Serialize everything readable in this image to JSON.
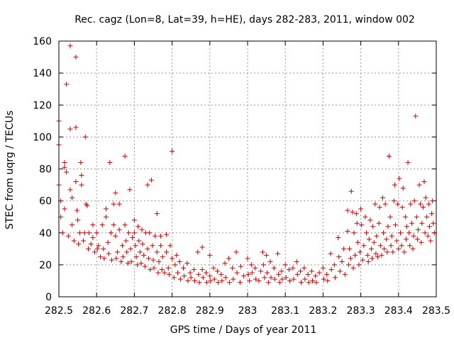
{
  "chart_data": {
    "type": "scatter",
    "title": "Rec. cagz (Lon=8, Lat=39, h=HE), days 282-283, 2011, window 002",
    "xlabel": "GPS time / Days of year 2011",
    "ylabel": "STEC from uqrg / TECUs",
    "xlim": [
      282.5,
      283.5
    ],
    "ylim": [
      0,
      160
    ],
    "xticks": [
      "282.5",
      "282.6",
      "282.7",
      "282.8",
      "282.9",
      "283",
      "283.1",
      "283.2",
      "283.3",
      "283.4",
      "283.5"
    ],
    "yticks": [
      "0",
      "20",
      "40",
      "60",
      "80",
      "100",
      "120",
      "140",
      "160"
    ],
    "grid": true,
    "marker": "plus",
    "colors": {
      "points": "#cc0000",
      "grid": "#999999",
      "frame": "#000000"
    },
    "points": [
      [
        282.5,
        110
      ],
      [
        282.5,
        95
      ],
      [
        282.5,
        70
      ],
      [
        282.505,
        60
      ],
      [
        282.505,
        50
      ],
      [
        282.51,
        40
      ],
      [
        282.515,
        55
      ],
      [
        282.515,
        84
      ],
      [
        282.515,
        81
      ],
      [
        282.52,
        78
      ],
      [
        282.52,
        133
      ],
      [
        282.525,
        38
      ],
      [
        282.53,
        157
      ],
      [
        282.53,
        105
      ],
      [
        282.53,
        67
      ],
      [
        282.535,
        62
      ],
      [
        282.535,
        45
      ],
      [
        282.54,
        35
      ],
      [
        282.545,
        150
      ],
      [
        282.545,
        106
      ],
      [
        282.545,
        72
      ],
      [
        282.548,
        54
      ],
      [
        282.55,
        48
      ],
      [
        282.552,
        33
      ],
      [
        282.555,
        40
      ],
      [
        282.558,
        84
      ],
      [
        282.56,
        76
      ],
      [
        282.56,
        70
      ],
      [
        282.565,
        35
      ],
      [
        282.568,
        40
      ],
      [
        282.57,
        100
      ],
      [
        282.572,
        58
      ],
      [
        282.575,
        57
      ],
      [
        282.578,
        30
      ],
      [
        282.58,
        40
      ],
      [
        282.585,
        33
      ],
      [
        282.59,
        37
      ],
      [
        282.59,
        45
      ],
      [
        282.595,
        28
      ],
      [
        282.6,
        40
      ],
      [
        282.602,
        30
      ],
      [
        282.605,
        32
      ],
      [
        282.61,
        25
      ],
      [
        282.615,
        45
      ],
      [
        282.618,
        30
      ],
      [
        282.62,
        24
      ],
      [
        282.625,
        55
      ],
      [
        282.625,
        50
      ],
      [
        282.63,
        34
      ],
      [
        282.632,
        27
      ],
      [
        282.635,
        84
      ],
      [
        282.638,
        40
      ],
      [
        282.64,
        23
      ],
      [
        282.645,
        58
      ],
      [
        282.645,
        45
      ],
      [
        282.65,
        65
      ],
      [
        282.65,
        38
      ],
      [
        282.652,
        24
      ],
      [
        282.655,
        28
      ],
      [
        282.66,
        58
      ],
      [
        282.66,
        42
      ],
      [
        282.665,
        22
      ],
      [
        282.668,
        32
      ],
      [
        282.67,
        25
      ],
      [
        282.675,
        88
      ],
      [
        282.675,
        45
      ],
      [
        282.678,
        35
      ],
      [
        282.68,
        28
      ],
      [
        282.683,
        21
      ],
      [
        282.685,
        40
      ],
      [
        282.688,
        67
      ],
      [
        282.69,
        30
      ],
      [
        282.692,
        22
      ],
      [
        282.695,
        37
      ],
      [
        282.7,
        48
      ],
      [
        282.7,
        40
      ],
      [
        282.703,
        32
      ],
      [
        282.705,
        25
      ],
      [
        282.708,
        20
      ],
      [
        282.71,
        44
      ],
      [
        282.712,
        35
      ],
      [
        282.715,
        28
      ],
      [
        282.718,
        21
      ],
      [
        282.72,
        42
      ],
      [
        282.722,
        33
      ],
      [
        282.725,
        26
      ],
      [
        282.728,
        19
      ],
      [
        282.73,
        40
      ],
      [
        282.735,
        70
      ],
      [
        282.735,
        30
      ],
      [
        282.738,
        24
      ],
      [
        282.74,
        40
      ],
      [
        282.742,
        17
      ],
      [
        282.745,
        73
      ],
      [
        282.748,
        32
      ],
      [
        282.75,
        23
      ],
      [
        282.752,
        18
      ],
      [
        282.755,
        38
      ],
      [
        282.76,
        52
      ],
      [
        282.76,
        28
      ],
      [
        282.763,
        15
      ],
      [
        282.765,
        22
      ],
      [
        282.77,
        38
      ],
      [
        282.77,
        32
      ],
      [
        282.773,
        17
      ],
      [
        282.775,
        25
      ],
      [
        282.78,
        15
      ],
      [
        282.785,
        39
      ],
      [
        282.785,
        28
      ],
      [
        282.79,
        18
      ],
      [
        282.792,
        14
      ],
      [
        282.795,
        32
      ],
      [
        282.8,
        91
      ],
      [
        282.8,
        24
      ],
      [
        282.805,
        12
      ],
      [
        282.808,
        20
      ],
      [
        282.812,
        26
      ],
      [
        282.815,
        15
      ],
      [
        282.82,
        22
      ],
      [
        282.822,
        11
      ],
      [
        282.83,
        18
      ],
      [
        282.832,
        13
      ],
      [
        282.84,
        21
      ],
      [
        282.842,
        10
      ],
      [
        282.848,
        15
      ],
      [
        282.85,
        12
      ],
      [
        282.858,
        17
      ],
      [
        282.86,
        10
      ],
      [
        282.868,
        28
      ],
      [
        282.87,
        14
      ],
      [
        282.872,
        9
      ],
      [
        282.88,
        31
      ],
      [
        282.88,
        17
      ],
      [
        282.882,
        12
      ],
      [
        282.89,
        15
      ],
      [
        282.892,
        9
      ],
      [
        282.9,
        26
      ],
      [
        282.9,
        13
      ],
      [
        282.902,
        10
      ],
      [
        282.91,
        18
      ],
      [
        282.912,
        11
      ],
      [
        282.92,
        16
      ],
      [
        282.922,
        9
      ],
      [
        282.93,
        14
      ],
      [
        282.932,
        10
      ],
      [
        282.94,
        21
      ],
      [
        282.942,
        12
      ],
      [
        282.95,
        24
      ],
      [
        282.952,
        9
      ],
      [
        282.96,
        18
      ],
      [
        282.962,
        11
      ],
      [
        282.97,
        28
      ],
      [
        282.972,
        15
      ],
      [
        282.98,
        9
      ],
      [
        282.982,
        19
      ],
      [
        282.99,
        13
      ],
      [
        283.0,
        24
      ],
      [
        283.002,
        14
      ],
      [
        283.005,
        10
      ],
      [
        283.01,
        20
      ],
      [
        283.012,
        15
      ],
      [
        283.02,
        18
      ],
      [
        283.022,
        11
      ],
      [
        283.03,
        10
      ],
      [
        283.035,
        16
      ],
      [
        283.04,
        28
      ],
      [
        283.042,
        20
      ],
      [
        283.045,
        12
      ],
      [
        283.05,
        26
      ],
      [
        283.052,
        15
      ],
      [
        283.055,
        9
      ],
      [
        283.06,
        22
      ],
      [
        283.062,
        12
      ],
      [
        283.07,
        18
      ],
      [
        283.072,
        11
      ],
      [
        283.08,
        27
      ],
      [
        283.082,
        14
      ],
      [
        283.085,
        9
      ],
      [
        283.09,
        16
      ],
      [
        283.092,
        11
      ],
      [
        283.1,
        20
      ],
      [
        283.102,
        12
      ],
      [
        283.11,
        17
      ],
      [
        283.112,
        10
      ],
      [
        283.12,
        18
      ],
      [
        283.122,
        11
      ],
      [
        283.13,
        22
      ],
      [
        283.132,
        14
      ],
      [
        283.14,
        16
      ],
      [
        283.142,
        9
      ],
      [
        283.15,
        18
      ],
      [
        283.152,
        11
      ],
      [
        283.16,
        14
      ],
      [
        283.162,
        9
      ],
      [
        283.17,
        16
      ],
      [
        283.172,
        10
      ],
      [
        283.18,
        13
      ],
      [
        283.182,
        9
      ],
      [
        283.19,
        15
      ],
      [
        283.2,
        18
      ],
      [
        283.202,
        11
      ],
      [
        283.21,
        14
      ],
      [
        283.212,
        10
      ],
      [
        283.22,
        27
      ],
      [
        283.222,
        17
      ],
      [
        283.23,
        20
      ],
      [
        283.232,
        12
      ],
      [
        283.24,
        37
      ],
      [
        283.242,
        25
      ],
      [
        283.245,
        16
      ],
      [
        283.25,
        22
      ],
      [
        283.255,
        30
      ],
      [
        283.258,
        14
      ],
      [
        283.265,
        54
      ],
      [
        283.265,
        41
      ],
      [
        283.268,
        20
      ],
      [
        283.27,
        30
      ],
      [
        283.273,
        24
      ],
      [
        283.275,
        66
      ],
      [
        283.278,
        53
      ],
      [
        283.28,
        18
      ],
      [
        283.282,
        40
      ],
      [
        283.285,
        26
      ],
      [
        283.288,
        52
      ],
      [
        283.29,
        46
      ],
      [
        283.292,
        34
      ],
      [
        283.295,
        20
      ],
      [
        283.298,
        28
      ],
      [
        283.3,
        55
      ],
      [
        283.302,
        45
      ],
      [
        283.305,
        23
      ],
      [
        283.308,
        32
      ],
      [
        283.312,
        50
      ],
      [
        283.315,
        40
      ],
      [
        283.318,
        26
      ],
      [
        283.32,
        22
      ],
      [
        283.322,
        36
      ],
      [
        283.325,
        48
      ],
      [
        283.328,
        30
      ],
      [
        283.33,
        24
      ],
      [
        283.332,
        44
      ],
      [
        283.335,
        34
      ],
      [
        283.338,
        58
      ],
      [
        283.34,
        27
      ],
      [
        283.342,
        38
      ],
      [
        283.345,
        25
      ],
      [
        283.348,
        46
      ],
      [
        283.35,
        56
      ],
      [
        283.352,
        32
      ],
      [
        283.355,
        26
      ],
      [
        283.358,
        62
      ],
      [
        283.36,
        40
      ],
      [
        283.362,
        30
      ],
      [
        283.365,
        58
      ],
      [
        283.368,
        36
      ],
      [
        283.37,
        28
      ],
      [
        283.372,
        44
      ],
      [
        283.375,
        88
      ],
      [
        283.378,
        50
      ],
      [
        283.38,
        32
      ],
      [
        283.382,
        38
      ],
      [
        283.385,
        28
      ],
      [
        283.388,
        60
      ],
      [
        283.39,
        70
      ],
      [
        283.392,
        45
      ],
      [
        283.395,
        35
      ],
      [
        283.398,
        58
      ],
      [
        283.4,
        30
      ],
      [
        283.402,
        74
      ],
      [
        283.405,
        40
      ],
      [
        283.408,
        32
      ],
      [
        283.41,
        56
      ],
      [
        283.412,
        68
      ],
      [
        283.415,
        28
      ],
      [
        283.418,
        50
      ],
      [
        283.42,
        36
      ],
      [
        283.422,
        44
      ],
      [
        283.425,
        84
      ],
      [
        283.428,
        40
      ],
      [
        283.43,
        32
      ],
      [
        283.432,
        58
      ],
      [
        283.435,
        46
      ],
      [
        283.438,
        30
      ],
      [
        283.44,
        38
      ],
      [
        283.442,
        60
      ],
      [
        283.445,
        113
      ],
      [
        283.448,
        50
      ],
      [
        283.45,
        36
      ],
      [
        283.452,
        42
      ],
      [
        283.455,
        70
      ],
      [
        283.458,
        58
      ],
      [
        283.46,
        34
      ],
      [
        283.462,
        46
      ],
      [
        283.465,
        56
      ],
      [
        283.468,
        72
      ],
      [
        283.47,
        40
      ],
      [
        283.472,
        62
      ],
      [
        283.475,
        50
      ],
      [
        283.478,
        38
      ],
      [
        283.48,
        58
      ],
      [
        283.482,
        44
      ],
      [
        283.485,
        35
      ],
      [
        283.488,
        52
      ],
      [
        283.49,
        60
      ],
      [
        283.492,
        46
      ],
      [
        283.495,
        40
      ]
    ]
  }
}
